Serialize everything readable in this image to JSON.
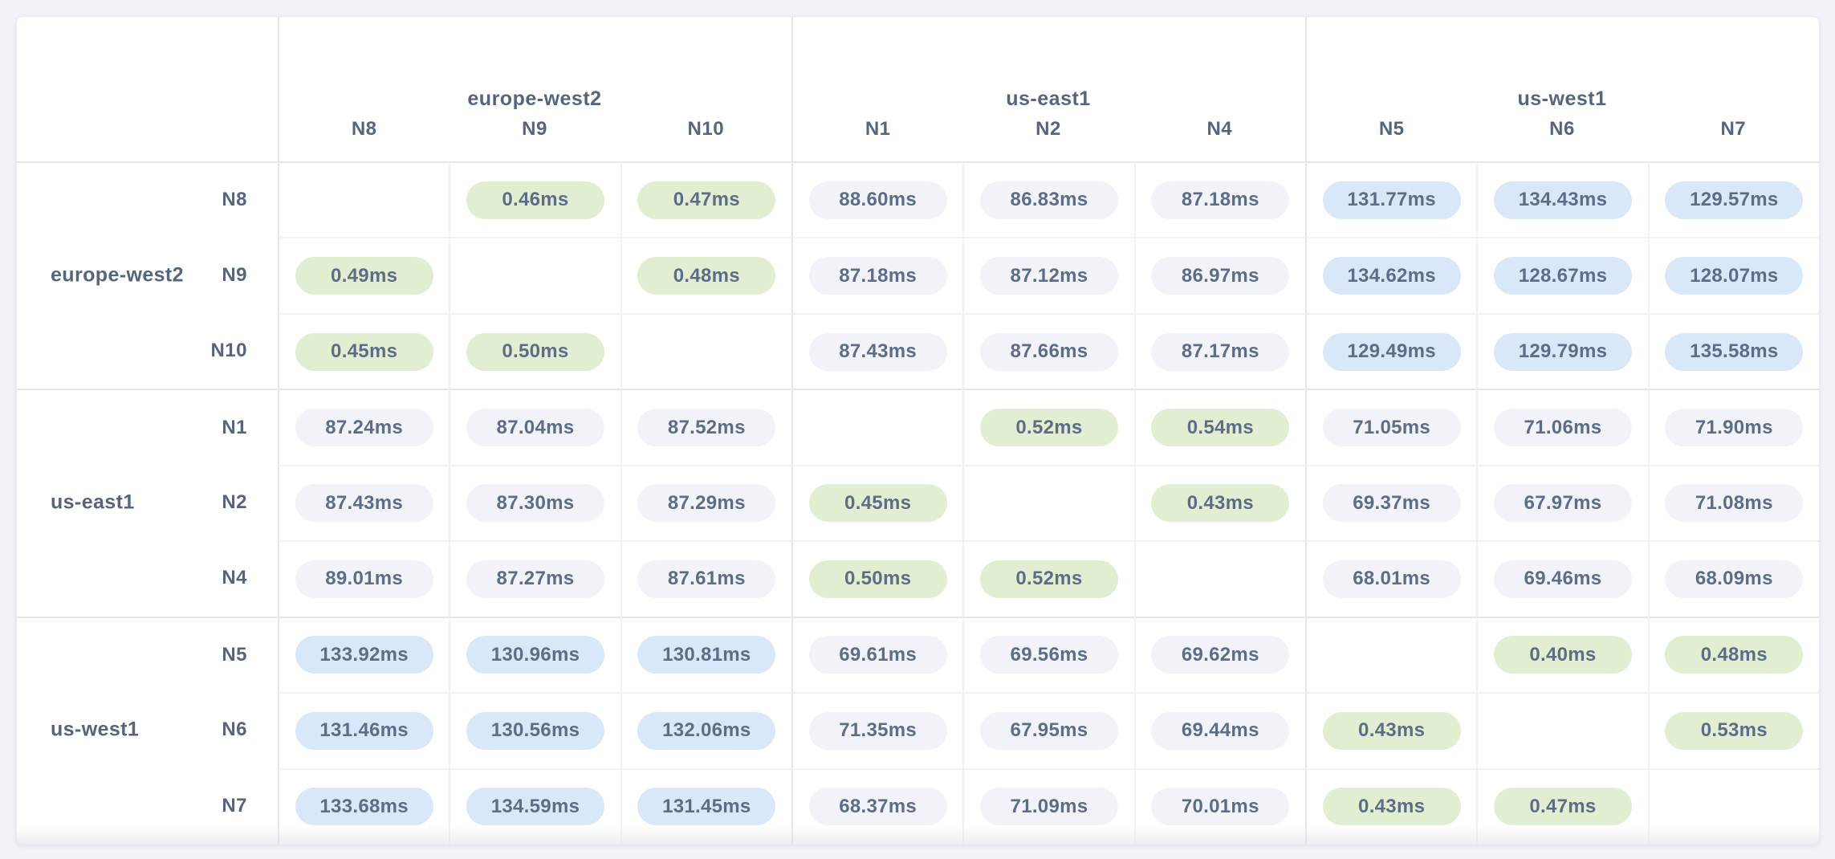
{
  "page": {
    "background": "#f2f3f8"
  },
  "matrix": {
    "unit": "ms",
    "legend_colors": {
      "intra_region_low": "#e2eed1",
      "mid_latency": "#f1f3f8",
      "high_latency": "#d9e8f8",
      "value_text": "#5d6d87",
      "header_text": "#56657e"
    },
    "groups": [
      {
        "region": "europe-west2",
        "nodes": [
          "N8",
          "N9",
          "N10"
        ]
      },
      {
        "region": "us-east1",
        "nodes": [
          "N1",
          "N2",
          "N4"
        ]
      },
      {
        "region": "us-west1",
        "nodes": [
          "N5",
          "N6",
          "N7"
        ]
      }
    ],
    "rows": [
      {
        "node": "N8",
        "region": "europe-west2",
        "cells": [
          "",
          "0.46ms",
          "0.47ms",
          "88.60ms",
          "86.83ms",
          "87.18ms",
          "131.77ms",
          "134.43ms",
          "129.57ms"
        ]
      },
      {
        "node": "N9",
        "region": "europe-west2",
        "cells": [
          "0.49ms",
          "",
          "0.48ms",
          "87.18ms",
          "87.12ms",
          "86.97ms",
          "134.62ms",
          "128.67ms",
          "128.07ms"
        ]
      },
      {
        "node": "N10",
        "region": "europe-west2",
        "cells": [
          "0.45ms",
          "0.50ms",
          "",
          "87.43ms",
          "87.66ms",
          "87.17ms",
          "129.49ms",
          "129.79ms",
          "135.58ms"
        ]
      },
      {
        "node": "N1",
        "region": "us-east1",
        "cells": [
          "87.24ms",
          "87.04ms",
          "87.52ms",
          "",
          "0.52ms",
          "0.54ms",
          "71.05ms",
          "71.06ms",
          "71.90ms"
        ]
      },
      {
        "node": "N2",
        "region": "us-east1",
        "cells": [
          "87.43ms",
          "87.30ms",
          "87.29ms",
          "0.45ms",
          "",
          "0.43ms",
          "69.37ms",
          "67.97ms",
          "71.08ms"
        ]
      },
      {
        "node": "N4",
        "region": "us-east1",
        "cells": [
          "89.01ms",
          "87.27ms",
          "87.61ms",
          "0.50ms",
          "0.52ms",
          "",
          "68.01ms",
          "69.46ms",
          "68.09ms"
        ]
      },
      {
        "node": "N5",
        "region": "us-west1",
        "cells": [
          "133.92ms",
          "130.96ms",
          "130.81ms",
          "69.61ms",
          "69.56ms",
          "69.62ms",
          "",
          "0.40ms",
          "0.48ms"
        ]
      },
      {
        "node": "N6",
        "region": "us-west1",
        "cells": [
          "131.46ms",
          "130.56ms",
          "132.06ms",
          "71.35ms",
          "67.95ms",
          "69.44ms",
          "0.43ms",
          "",
          "0.53ms"
        ]
      },
      {
        "node": "N7",
        "region": "us-west1",
        "cells": [
          "133.68ms",
          "134.59ms",
          "131.45ms",
          "68.37ms",
          "71.09ms",
          "70.01ms",
          "0.43ms",
          "0.47ms",
          ""
        ]
      }
    ]
  },
  "chart_data": {
    "type": "heatmap",
    "title": "",
    "unit": "ms",
    "x_groups": [
      "europe-west2",
      "europe-west2",
      "europe-west2",
      "us-east1",
      "us-east1",
      "us-east1",
      "us-west1",
      "us-west1",
      "us-west1"
    ],
    "x": [
      "N8",
      "N9",
      "N10",
      "N1",
      "N2",
      "N4",
      "N5",
      "N6",
      "N7"
    ],
    "y_groups": [
      "europe-west2",
      "europe-west2",
      "europe-west2",
      "us-east1",
      "us-east1",
      "us-east1",
      "us-west1",
      "us-west1",
      "us-west1"
    ],
    "y": [
      "N8",
      "N9",
      "N10",
      "N1",
      "N2",
      "N4",
      "N5",
      "N6",
      "N7"
    ],
    "values": [
      [
        null,
        0.46,
        0.47,
        88.6,
        86.83,
        87.18,
        131.77,
        134.43,
        129.57
      ],
      [
        0.49,
        null,
        0.48,
        87.18,
        87.12,
        86.97,
        134.62,
        128.67,
        128.07
      ],
      [
        0.45,
        0.5,
        null,
        87.43,
        87.66,
        87.17,
        129.49,
        129.79,
        135.58
      ],
      [
        87.24,
        87.04,
        87.52,
        null,
        0.52,
        0.54,
        71.05,
        71.06,
        71.9
      ],
      [
        87.43,
        87.3,
        87.29,
        0.45,
        null,
        0.43,
        69.37,
        67.97,
        71.08
      ],
      [
        89.01,
        87.27,
        87.61,
        0.5,
        0.52,
        null,
        68.01,
        69.46,
        68.09
      ],
      [
        133.92,
        130.96,
        130.81,
        69.61,
        69.56,
        69.62,
        null,
        0.4,
        0.48
      ],
      [
        131.46,
        130.56,
        132.06,
        71.35,
        67.95,
        69.44,
        0.43,
        null,
        0.53
      ],
      [
        133.68,
        134.59,
        131.45,
        68.37,
        71.09,
        70.01,
        0.43,
        0.47,
        null
      ]
    ],
    "color_rule": "value < 1ms -> green (intra-region), 1-100ms -> neutral gray, > 100ms -> blue"
  }
}
